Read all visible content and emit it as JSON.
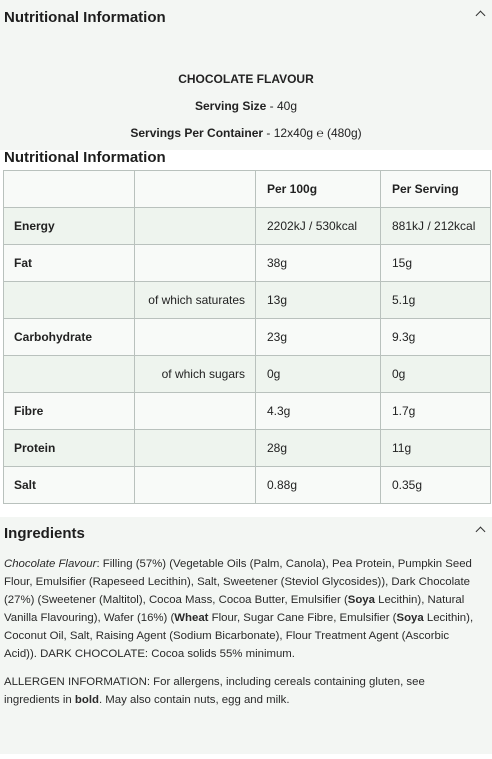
{
  "nutrition": {
    "title": "Nutritional Information",
    "flavour": "CHOCOLATE FLAVOUR",
    "serving_size_label": "Serving Size",
    "serving_size_value": " - 40g",
    "servings_per_container_label": "Servings Per Container",
    "servings_per_container_value": " - 12x40g ℮ (480g)",
    "table_title": "Nutritional Information",
    "columns": [
      "",
      "",
      "Per 100g",
      "Per Serving"
    ],
    "rows": [
      {
        "name": "Energy",
        "sub": "",
        "per100": "2202kJ / 530kcal",
        "serving": "881kJ / 212kcal"
      },
      {
        "name": "Fat",
        "sub": "",
        "per100": "38g",
        "serving": "15g"
      },
      {
        "name": "",
        "sub": "of which saturates",
        "per100": "13g",
        "serving": "5.1g"
      },
      {
        "name": "Carbohydrate",
        "sub": "",
        "per100": "23g",
        "serving": "9.3g"
      },
      {
        "name": "",
        "sub": "of which sugars",
        "per100": "0g",
        "serving": "0g"
      },
      {
        "name": "Fibre",
        "sub": "",
        "per100": "4.3g",
        "serving": "1.7g"
      },
      {
        "name": "Protein",
        "sub": "",
        "per100": "28g",
        "serving": "11g"
      },
      {
        "name": "Salt",
        "sub": "",
        "per100": "0.88g",
        "serving": "0.35g"
      }
    ]
  },
  "ingredients": {
    "title": "Ingredients",
    "flavour_label": "Chocolate Flavour",
    "text_1": ": Filling (57%) (Vegetable Oils (Palm, Canola), Pea Protein, Pumpkin Seed Flour, Emulsifier (Rapeseed Lecithin), Salt, Sweetener (Steviol Glycosides)), Dark Chocolate (27%) (Sweetener (Maltitol), Cocoa Mass, Cocoa Butter, Emulsifier (",
    "allergen_soya_1": "Soya",
    "text_2": " Lecithin), Natural Vanilla Flavouring), Wafer (16%) (",
    "allergen_wheat": "Wheat",
    "text_3": " Flour, Sugar Cane Fibre, Emulsifier (",
    "allergen_soya_2": "Soya",
    "text_4": " Lecithin), Coconut Oil, Salt, Raising Agent (Sodium Bicarbonate), Flour Treatment Agent (Ascorbic Acid)). DARK CHOCOLATE: Cocoa solids 55% minimum.",
    "allergen_text_1": "ALLERGEN INFORMATION: For allergens, including cereals containing gluten, see ingredients in ",
    "allergen_bold": "bold",
    "allergen_text_2": ". May also contain nuts, egg and milk."
  },
  "icons": {
    "collapse": "chevron-up-icon"
  }
}
